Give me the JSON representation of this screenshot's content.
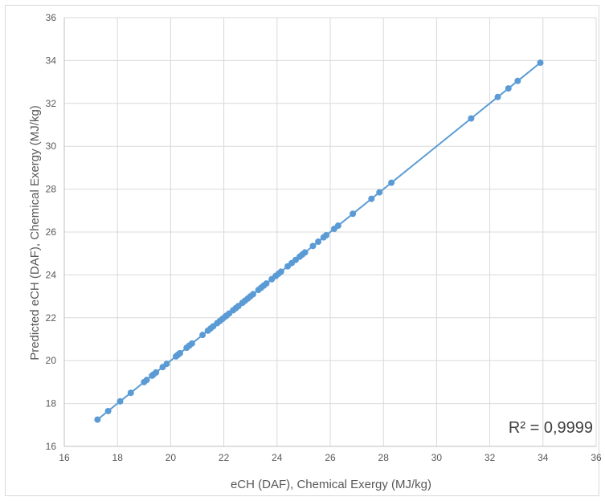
{
  "chart_data": {
    "type": "scatter",
    "xlabel": "eCH (DAF), Chemical Exergy (MJ/kg)",
    "ylabel": "Predicted eCH (DAF), Chemical Exergy (MJ/kg)",
    "xlim": [
      16,
      36
    ],
    "ylim": [
      16,
      36
    ],
    "xticks": [
      16,
      18,
      20,
      22,
      24,
      26,
      28,
      30,
      32,
      34,
      36
    ],
    "yticks": [
      16,
      18,
      20,
      22,
      24,
      26,
      28,
      30,
      32,
      34,
      36
    ],
    "grid": true,
    "legend": "none",
    "annotation": "R² = 0,9999",
    "colors": {
      "series": "#5b9bd5",
      "grid": "#d9d9d9",
      "tick_text": "#595959"
    },
    "series": [
      {
        "x": [
          17.25,
          17.65,
          18.1,
          18.5,
          19.0,
          19.1,
          19.3,
          19.35,
          19.45,
          19.7,
          19.85,
          20.2,
          20.25,
          20.3,
          20.35,
          20.6,
          20.7,
          20.8,
          21.2,
          21.4,
          21.5,
          21.6,
          21.75,
          21.85,
          21.95,
          22.05,
          22.1,
          22.2,
          22.35,
          22.45,
          22.55,
          22.7,
          22.8,
          22.9,
          23.0,
          23.1,
          23.3,
          23.4,
          23.5,
          23.6,
          23.8,
          23.95,
          24.05,
          24.15,
          24.4,
          24.55,
          24.7,
          24.85,
          24.95,
          25.05,
          25.35,
          25.55,
          25.75,
          25.85,
          26.15,
          26.3,
          26.85,
          27.55,
          27.85,
          28.3,
          31.3,
          32.3,
          32.7,
          33.05,
          33.9
        ],
        "y": [
          17.25,
          17.65,
          18.1,
          18.5,
          19.0,
          19.1,
          19.3,
          19.35,
          19.45,
          19.7,
          19.85,
          20.2,
          20.25,
          20.3,
          20.35,
          20.6,
          20.7,
          20.8,
          21.2,
          21.4,
          21.5,
          21.6,
          21.75,
          21.85,
          21.95,
          22.05,
          22.1,
          22.2,
          22.35,
          22.45,
          22.55,
          22.7,
          22.8,
          22.9,
          23.0,
          23.1,
          23.3,
          23.4,
          23.5,
          23.6,
          23.8,
          23.95,
          24.05,
          24.15,
          24.4,
          24.55,
          24.7,
          24.85,
          24.95,
          25.05,
          25.35,
          25.55,
          25.75,
          25.85,
          26.15,
          26.3,
          26.85,
          27.55,
          27.85,
          28.3,
          31.3,
          32.3,
          32.7,
          33.05,
          33.9
        ]
      }
    ]
  }
}
